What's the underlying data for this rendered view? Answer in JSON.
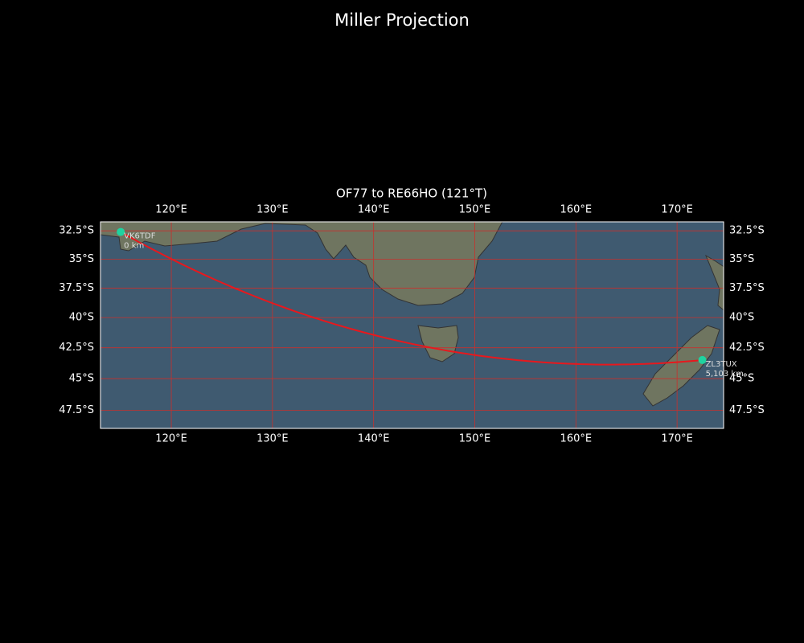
{
  "chart_data": {
    "type": "map",
    "title": "Miller Projection",
    "subtitle": "OF77 to RE66HO (121°T)",
    "projection": "miller",
    "xlim": [
      113.0,
      174.6
    ],
    "ylim": [
      -48.9,
      -31.7
    ],
    "xticks": [
      {
        "value": 120,
        "label": "120°E"
      },
      {
        "value": 130,
        "label": "130°E"
      },
      {
        "value": 140,
        "label": "140°E"
      },
      {
        "value": 150,
        "label": "150°E"
      },
      {
        "value": 160,
        "label": "160°E"
      },
      {
        "value": 170,
        "label": "170°E"
      }
    ],
    "yticks": [
      {
        "value": -32.5,
        "label": "32.5°S"
      },
      {
        "value": -35,
        "label": "35°S"
      },
      {
        "value": -37.5,
        "label": "37.5°S"
      },
      {
        "value": -40,
        "label": "40°S"
      },
      {
        "value": -42.5,
        "label": "42.5°S"
      },
      {
        "value": -45,
        "label": "45°S"
      },
      {
        "value": -47.5,
        "label": "47.5°S"
      }
    ],
    "grid": true,
    "grid_color": "#c8302c",
    "route_color": "#e8181d",
    "marker_color": "#1fd3a0",
    "stations": [
      {
        "name": "VK6TDF",
        "lon": 115.0,
        "lat": -32.6,
        "distance": 0,
        "distance_label": "0 km"
      },
      {
        "name": "ZL3TUX",
        "lon": 172.5,
        "lat": -43.5,
        "distance": 5103,
        "distance_label": "5,103 km"
      }
    ]
  }
}
